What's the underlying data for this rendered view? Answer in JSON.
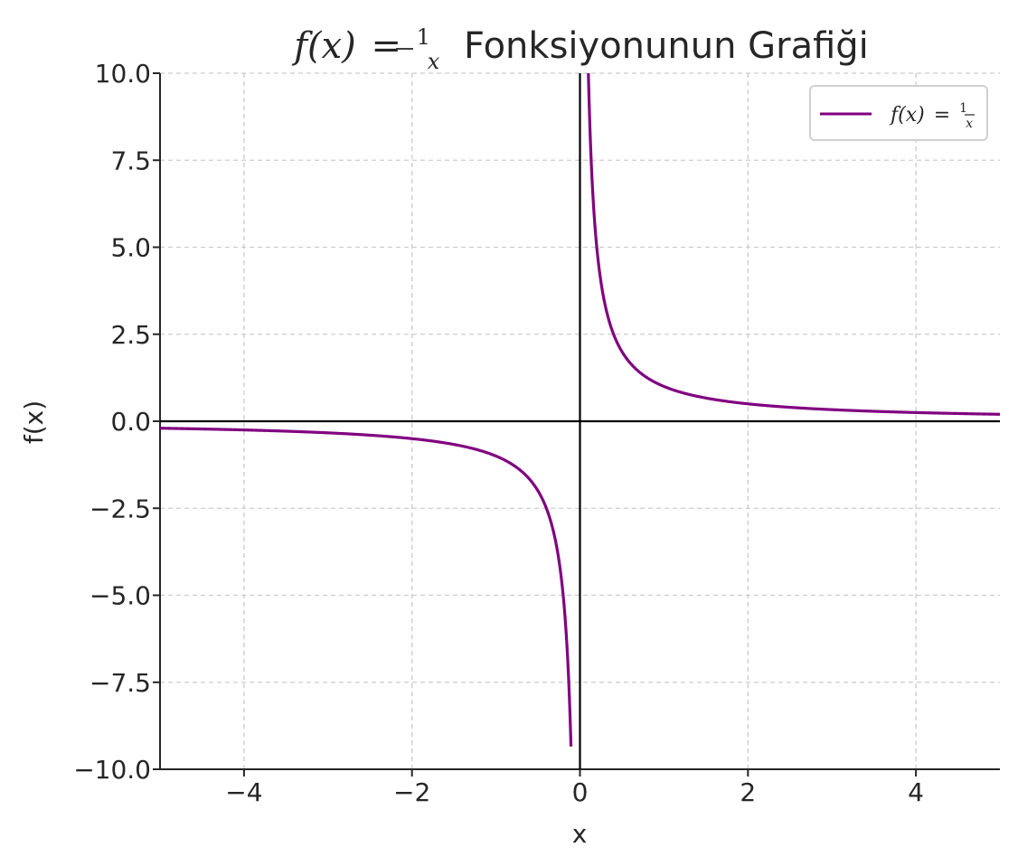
{
  "chart_data": {
    "type": "line",
    "title": {
      "math_lhs": "f(x)",
      "equals": "=",
      "numerator": "1",
      "denominator": "x",
      "text": "Fonksiyonunun Grafiği"
    },
    "xlabel": "x",
    "ylabel": "f(x)",
    "xlim": [
      -5,
      5
    ],
    "ylim": [
      -10,
      10
    ],
    "xticks": [
      -4,
      -2,
      0,
      2,
      4
    ],
    "xtick_labels": [
      "−4",
      "−2",
      "0",
      "2",
      "4"
    ],
    "yticks": [
      -10,
      -7.5,
      -5,
      -2.5,
      0,
      2.5,
      5,
      7.5,
      10
    ],
    "ytick_labels": [
      "−10.0",
      "−7.5",
      "−5.0",
      "−2.5",
      "0.0",
      "2.5",
      "5.0",
      "7.5",
      "10.0"
    ],
    "grid": true,
    "legend_position": "top-right",
    "reference_lines": {
      "x": 0,
      "y": 0
    },
    "series": [
      {
        "name": "f(x) = 1/x",
        "legend_label": {
          "lhs": "f(x)",
          "equals": "=",
          "numerator": "1",
          "denominator": "x"
        },
        "color": "#800080",
        "function": "1/x",
        "domain": [
          -5,
          5
        ],
        "sample_points": [
          {
            "x": -5,
            "y": -0.2
          },
          {
            "x": -4,
            "y": -0.25
          },
          {
            "x": -2,
            "y": -0.5
          },
          {
            "x": -1,
            "y": -1
          },
          {
            "x": -0.5,
            "y": -2
          },
          {
            "x": -0.25,
            "y": -4
          },
          {
            "x": -0.1,
            "y": -10
          },
          {
            "x": 0.1,
            "y": 10
          },
          {
            "x": 0.25,
            "y": 4
          },
          {
            "x": 0.5,
            "y": 2
          },
          {
            "x": 1,
            "y": 1
          },
          {
            "x": 2,
            "y": 0.5
          },
          {
            "x": 4,
            "y": 0.25
          },
          {
            "x": 5,
            "y": 0.2
          }
        ]
      }
    ]
  }
}
